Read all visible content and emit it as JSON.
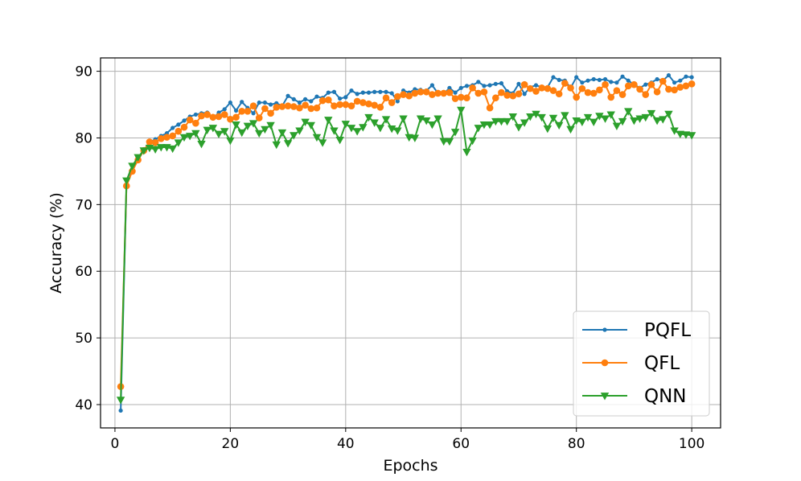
{
  "chart_data": {
    "type": "line",
    "title": "",
    "xlabel": "Epochs",
    "ylabel": "Accuracy (%)",
    "xlim": [
      -2.5,
      105
    ],
    "ylim": [
      36.5,
      92
    ],
    "xticks": [
      0,
      20,
      40,
      60,
      80,
      100
    ],
    "yticks": [
      40,
      50,
      60,
      70,
      80,
      90
    ],
    "grid": true,
    "legend_position": "bottom-right",
    "x": [
      1,
      2,
      3,
      4,
      5,
      6,
      7,
      8,
      9,
      10,
      11,
      12,
      13,
      14,
      15,
      16,
      17,
      18,
      19,
      20,
      21,
      22,
      23,
      24,
      25,
      26,
      27,
      28,
      29,
      30,
      31,
      32,
      33,
      34,
      35,
      36,
      37,
      38,
      39,
      40,
      41,
      42,
      43,
      44,
      45,
      46,
      47,
      48,
      49,
      50,
      51,
      52,
      53,
      54,
      55,
      56,
      57,
      58,
      59,
      60,
      61,
      62,
      63,
      64,
      65,
      66,
      67,
      68,
      69,
      70,
      71,
      72,
      73,
      74,
      75,
      76,
      77,
      78,
      79,
      80,
      81,
      82,
      83,
      84,
      85,
      86,
      87,
      88,
      89,
      90,
      91,
      92,
      93,
      94,
      95,
      96,
      97,
      98,
      99,
      100
    ],
    "series": [
      {
        "name": "PQFL",
        "color": "#1f77b4",
        "marker": "point",
        "values": [
          39.1,
          72.8,
          75.3,
          77.0,
          78.2,
          79.3,
          79.8,
          80.3,
          80.7,
          81.5,
          82.0,
          82.6,
          83.2,
          83.5,
          83.7,
          83.8,
          82.9,
          83.8,
          84.3,
          85.3,
          84.1,
          85.4,
          84.5,
          83.7,
          85.3,
          85.3,
          85.0,
          85.2,
          84.8,
          86.3,
          85.8,
          85.3,
          85.8,
          85.5,
          86.2,
          86.0,
          86.8,
          86.9,
          85.9,
          86.1,
          87.1,
          86.6,
          86.8,
          86.8,
          86.9,
          86.9,
          86.9,
          86.7,
          85.5,
          87.1,
          86.8,
          87.3,
          87.2,
          87.1,
          87.9,
          86.7,
          86.6,
          87.5,
          86.8,
          87.5,
          87.8,
          87.9,
          88.4,
          87.8,
          87.9,
          88.1,
          88.2,
          87.0,
          86.7,
          88.1,
          86.6,
          87.6,
          87.9,
          87.6,
          87.6,
          89.1,
          88.7,
          88.6,
          87.5,
          89.1,
          88.3,
          88.6,
          88.8,
          88.7,
          88.8,
          88.4,
          88.3,
          89.2,
          88.6,
          88.0,
          87.5,
          88.0,
          88.3,
          88.8,
          88.6,
          89.4,
          88.3,
          88.6,
          89.2,
          89.1
        ]
      },
      {
        "name": "QFL",
        "color": "#ff7f0e",
        "marker": "circle",
        "values": [
          42.7,
          72.8,
          75.0,
          76.7,
          78.1,
          79.4,
          79.3,
          79.9,
          80.1,
          80.3,
          81.0,
          81.6,
          82.7,
          82.2,
          83.3,
          83.5,
          83.1,
          83.2,
          83.5,
          82.8,
          83.1,
          84.0,
          84.0,
          84.8,
          83.0,
          84.4,
          83.7,
          84.6,
          84.7,
          84.8,
          84.7,
          84.5,
          84.9,
          84.4,
          84.5,
          85.6,
          85.7,
          84.8,
          85.0,
          85.0,
          84.8,
          85.5,
          85.3,
          85.1,
          84.9,
          84.6,
          86.0,
          85.3,
          86.2,
          86.5,
          86.3,
          86.7,
          86.9,
          86.9,
          86.5,
          86.7,
          86.7,
          86.8,
          85.9,
          86.1,
          86.0,
          87.5,
          86.7,
          86.9,
          84.5,
          86.0,
          86.8,
          86.4,
          86.3,
          86.6,
          88.0,
          87.4,
          87.0,
          87.5,
          87.4,
          87.1,
          86.6,
          88.2,
          87.5,
          86.1,
          87.4,
          86.8,
          86.7,
          87.2,
          88.0,
          86.1,
          87.1,
          86.5,
          87.8,
          88.0,
          87.3,
          86.5,
          88.0,
          86.9,
          88.5,
          87.3,
          87.2,
          87.6,
          87.8,
          88.1
        ]
      },
      {
        "name": "QNN",
        "color": "#2ca02c",
        "marker": "triangle-down",
        "values": [
          40.7,
          73.6,
          75.8,
          77.1,
          78.1,
          78.5,
          78.3,
          78.6,
          78.6,
          78.4,
          79.3,
          80.1,
          80.3,
          80.7,
          79.1,
          81.2,
          81.5,
          80.6,
          81.0,
          79.6,
          82.0,
          80.8,
          81.8,
          82.2,
          80.7,
          81.3,
          81.9,
          79.0,
          80.8,
          79.2,
          80.4,
          81.1,
          82.4,
          81.9,
          80.1,
          79.3,
          82.7,
          81.1,
          79.7,
          82.1,
          81.5,
          81.0,
          81.6,
          83.1,
          82.3,
          81.5,
          82.8,
          81.4,
          81.1,
          82.9,
          80.1,
          80.0,
          82.9,
          82.6,
          82.0,
          82.9,
          79.5,
          79.5,
          80.9,
          84.2,
          77.9,
          79.6,
          81.5,
          82.0,
          82.0,
          82.5,
          82.5,
          82.5,
          83.2,
          81.6,
          82.3,
          83.2,
          83.6,
          83.1,
          81.4,
          83.0,
          81.9,
          83.4,
          81.3,
          82.6,
          82.4,
          83.1,
          82.4,
          83.3,
          82.9,
          83.5,
          81.8,
          82.5,
          84.0,
          82.6,
          82.9,
          83.1,
          83.7,
          82.6,
          82.8,
          83.6,
          81.1,
          80.6,
          80.5,
          80.4
        ]
      }
    ]
  }
}
